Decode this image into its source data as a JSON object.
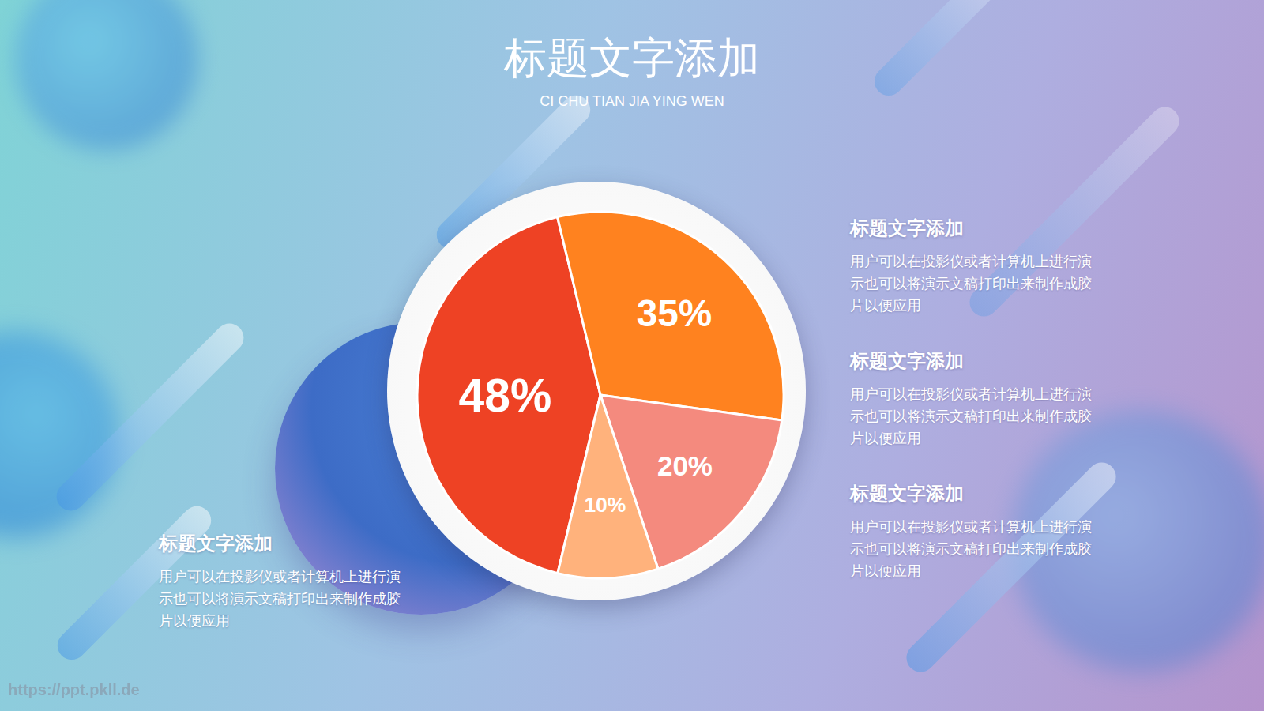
{
  "chart_data": {
    "type": "pie",
    "title": "标题文字添加",
    "subtitle": "CI CHU TIAN JIA YING WEN",
    "values": [
      48,
      35,
      20,
      10
    ],
    "value_labels": [
      "48%",
      "35%",
      "20%",
      "10%"
    ],
    "colors": [
      "#ee4224",
      "#ff821f",
      "#f48a7e",
      "#ffb27c"
    ],
    "data_labels": true,
    "annotations": [
      {
        "title": "标题文字添加",
        "text": "用户可以在投影仪或者计算机上进行演示也可以将演示文稿打印出来制作成胶片以便应用"
      },
      {
        "title": "标题文字添加",
        "text": "用户可以在投影仪或者计算机上进行演示也可以将演示文稿打印出来制作成胶片以便应用"
      },
      {
        "title": "标题文字添加",
        "text": "用户可以在投影仪或者计算机上进行演示也可以将演示文稿打印出来制作成胶片以便应用"
      },
      {
        "title": "标题文字添加",
        "text": "用户可以在投影仪或者计算机上进行演示也可以将演示文稿打印出来制作成胶片以便应用"
      }
    ],
    "watermark": "https://ppt.pkll.de"
  }
}
